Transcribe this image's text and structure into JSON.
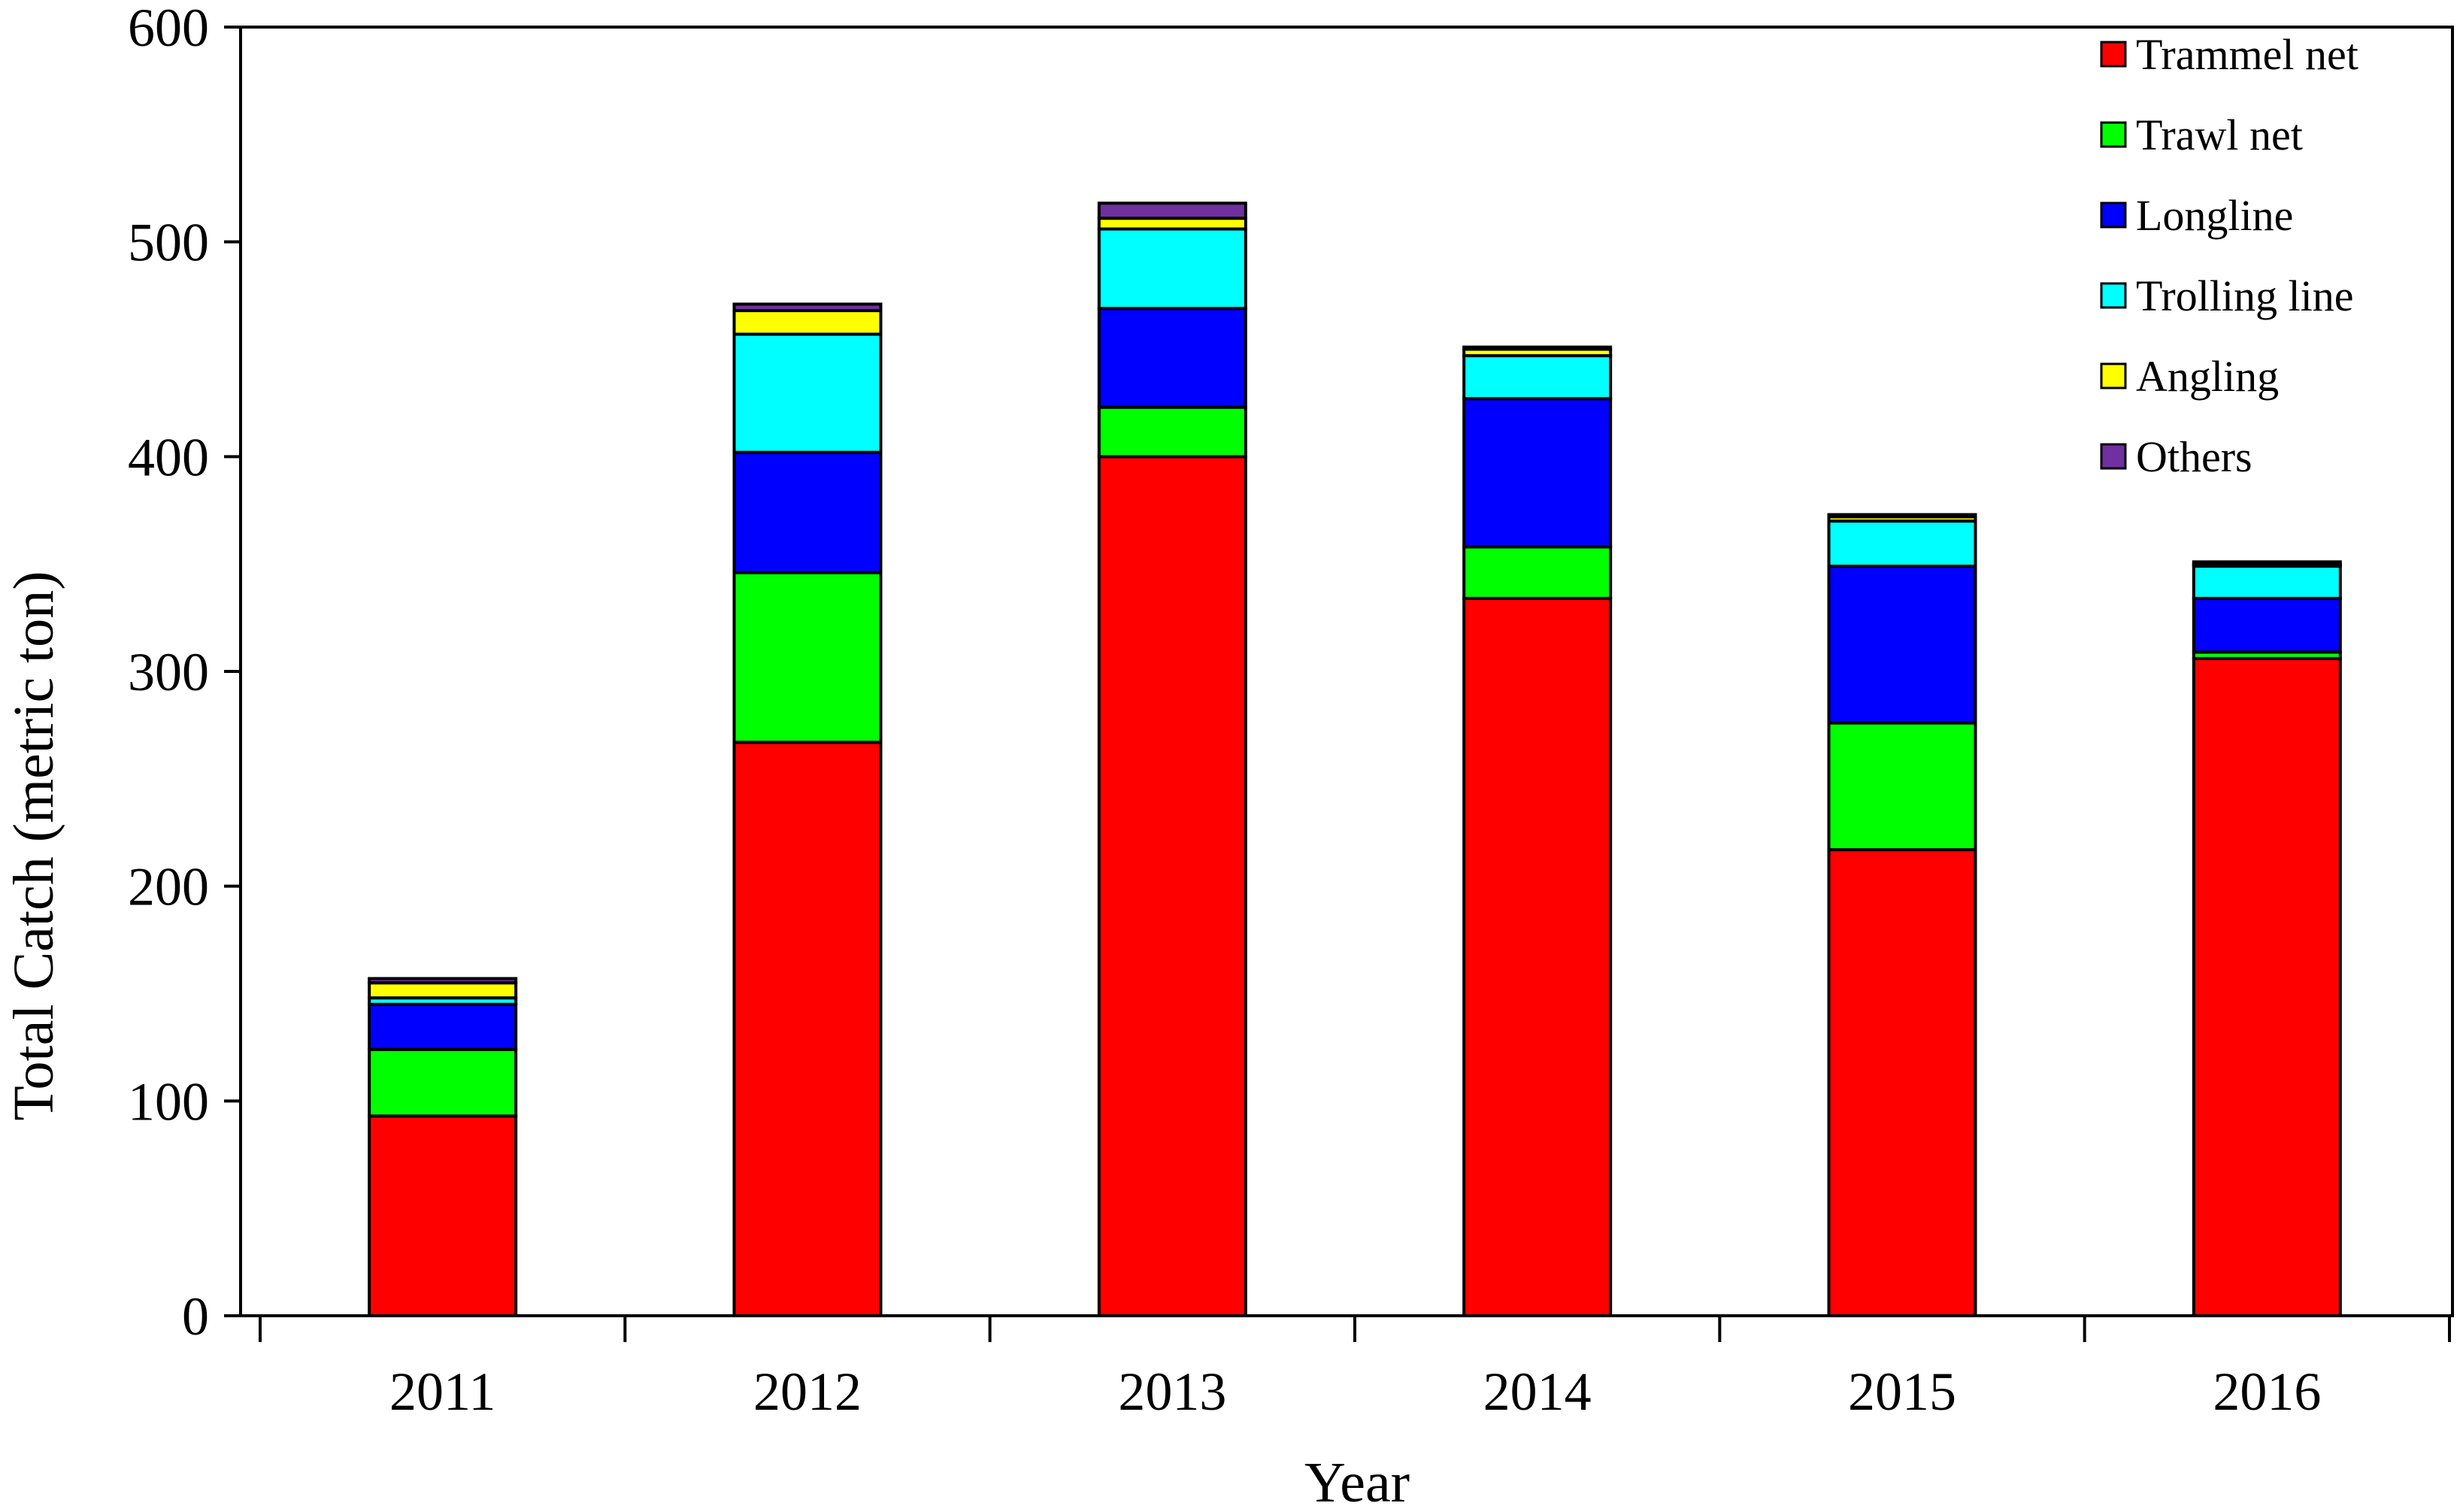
{
  "chart_data": {
    "type": "bar",
    "stacked": true,
    "xlabel": "Year",
    "ylabel": "Total Catch (metric ton)",
    "ylim": [
      0,
      600
    ],
    "yticks": [
      0,
      100,
      200,
      300,
      400,
      500,
      600
    ],
    "categories": [
      "2011",
      "2012",
      "2013",
      "2014",
      "2015",
      "2016"
    ],
    "grid": false,
    "legend_position": "top-right",
    "series": [
      {
        "name": "Trammel net",
        "color": "#ff0000",
        "values": [
          93,
          267,
          400,
          334,
          217,
          306
        ]
      },
      {
        "name": "Trawl net",
        "color": "#00ff00",
        "values": [
          31,
          79,
          23,
          24,
          59,
          3
        ]
      },
      {
        "name": "Longline",
        "color": "#0000ff",
        "values": [
          21,
          56,
          46,
          69,
          73,
          25
        ]
      },
      {
        "name": "Trolling line",
        "color": "#00ffff",
        "values": [
          3,
          55,
          37,
          20,
          21,
          15
        ]
      },
      {
        "name": "Angling",
        "color": "#ffff00",
        "values": [
          7,
          11,
          5,
          3,
          2,
          1
        ]
      },
      {
        "name": "Others",
        "color": "#7030a0",
        "values": [
          2,
          3,
          7,
          1,
          1,
          1
        ]
      }
    ]
  }
}
